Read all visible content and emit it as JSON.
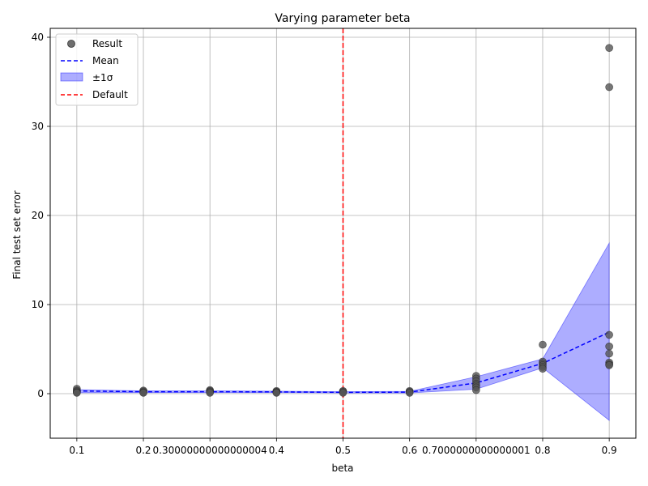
{
  "chart_data": {
    "type": "scatter",
    "title": "Varying parameter beta",
    "xlabel": "beta",
    "ylabel": "Final test set error",
    "xlim": [
      0.06,
      0.94
    ],
    "ylim": [
      -5,
      41
    ],
    "grid": true,
    "legend_position": "upper-left",
    "x_ticks": [
      {
        "value": 0.1,
        "label": "0.1"
      },
      {
        "value": 0.2,
        "label": "0.2"
      },
      {
        "value": 0.3,
        "label": "0.30000000000000004"
      },
      {
        "value": 0.4,
        "label": "0.4"
      },
      {
        "value": 0.5,
        "label": "0.5"
      },
      {
        "value": 0.6,
        "label": "0.6"
      },
      {
        "value": 0.7,
        "label": "0.7000000000000001"
      },
      {
        "value": 0.8,
        "label": "0.8"
      },
      {
        "value": 0.9,
        "label": "0.9"
      }
    ],
    "y_ticks": [
      {
        "value": 0,
        "label": "0"
      },
      {
        "value": 10,
        "label": "10"
      },
      {
        "value": 20,
        "label": "20"
      },
      {
        "value": 30,
        "label": "30"
      },
      {
        "value": 40,
        "label": "40"
      }
    ],
    "results": {
      "name": "Result",
      "color": "#555555",
      "points": [
        [
          0.1,
          0.55
        ],
        [
          0.1,
          0.35
        ],
        [
          0.1,
          0.25
        ],
        [
          0.1,
          0.15
        ],
        [
          0.1,
          0.1
        ],
        [
          0.2,
          0.35
        ],
        [
          0.2,
          0.25
        ],
        [
          0.2,
          0.15
        ],
        [
          0.2,
          0.1
        ],
        [
          0.3,
          0.4
        ],
        [
          0.3,
          0.3
        ],
        [
          0.3,
          0.2
        ],
        [
          0.3,
          0.1
        ],
        [
          0.4,
          0.3
        ],
        [
          0.4,
          0.2
        ],
        [
          0.4,
          0.15
        ],
        [
          0.4,
          0.1
        ],
        [
          0.5,
          0.3
        ],
        [
          0.5,
          0.2
        ],
        [
          0.5,
          0.1
        ],
        [
          0.6,
          0.3
        ],
        [
          0.6,
          0.2
        ],
        [
          0.6,
          0.1
        ],
        [
          0.7,
          2.0
        ],
        [
          0.7,
          1.7
        ],
        [
          0.7,
          1.4
        ],
        [
          0.7,
          1.1
        ],
        [
          0.7,
          0.9
        ],
        [
          0.7,
          0.7
        ],
        [
          0.7,
          0.4
        ],
        [
          0.8,
          5.5
        ],
        [
          0.8,
          3.6
        ],
        [
          0.8,
          3.4
        ],
        [
          0.8,
          3.2
        ],
        [
          0.8,
          3.0
        ],
        [
          0.8,
          2.8
        ],
        [
          0.9,
          38.8
        ],
        [
          0.9,
          34.4
        ],
        [
          0.9,
          6.6
        ],
        [
          0.9,
          5.3
        ],
        [
          0.9,
          4.5
        ],
        [
          0.9,
          3.5
        ],
        [
          0.9,
          3.3
        ],
        [
          0.9,
          3.2
        ]
      ]
    },
    "mean": {
      "name": "Mean",
      "color": "#0000ff",
      "x": [
        0.1,
        0.2,
        0.3,
        0.4,
        0.5,
        0.6,
        0.7,
        0.8,
        0.9
      ],
      "y": [
        0.3,
        0.22,
        0.22,
        0.2,
        0.15,
        0.17,
        1.2,
        3.4,
        6.9
      ]
    },
    "band": {
      "name": "±1σ",
      "color": "#0000ff",
      "opacity": 0.32,
      "lower": [
        0.1,
        0.12,
        0.12,
        0.12,
        0.08,
        0.08,
        0.5,
        2.9,
        -3.0
      ],
      "upper": [
        0.45,
        0.32,
        0.32,
        0.28,
        0.22,
        0.26,
        1.9,
        3.9,
        16.9
      ]
    },
    "default": {
      "name": "Default",
      "color": "#ff0000",
      "x": 0.5
    }
  }
}
